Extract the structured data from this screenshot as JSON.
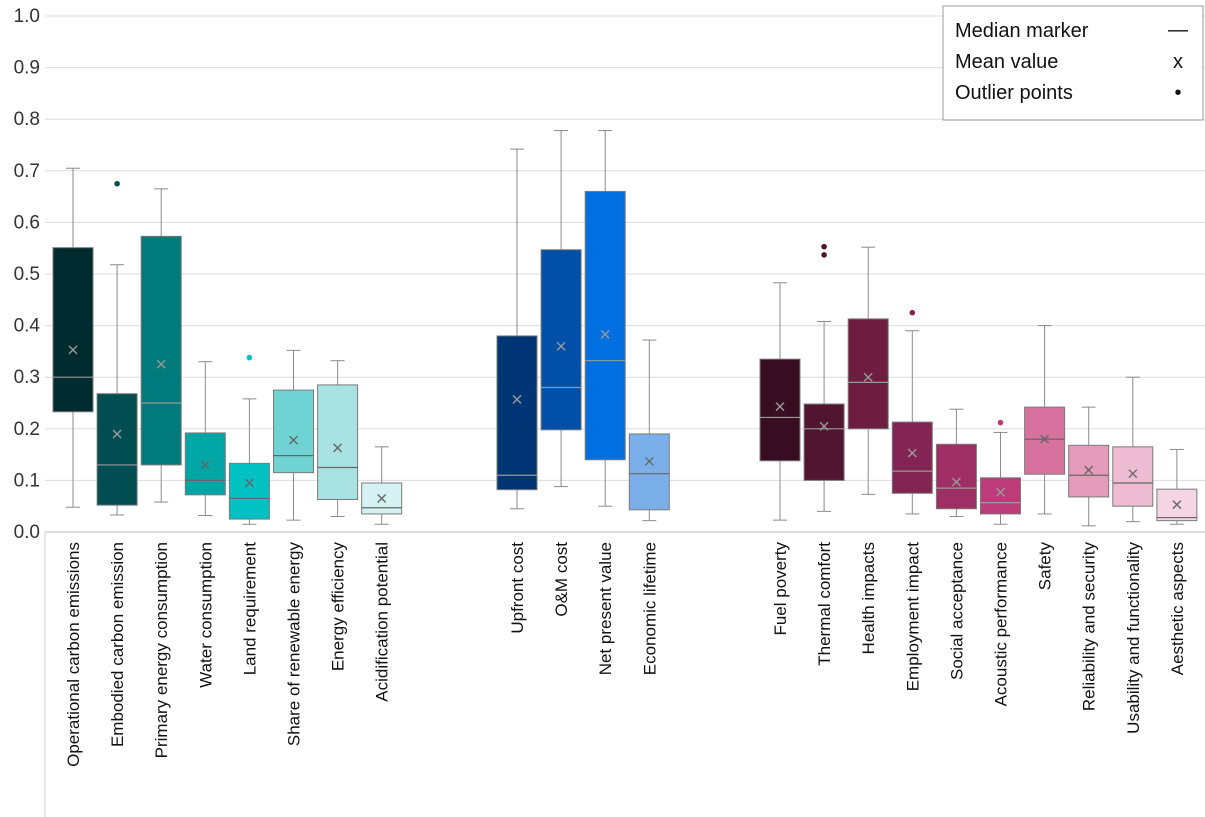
{
  "chart_data": {
    "type": "box",
    "ylim": [
      0,
      1.0
    ],
    "yticks": [
      "0.0",
      "0.1",
      "0.2",
      "0.3",
      "0.4",
      "0.5",
      "0.6",
      "0.7",
      "0.8",
      "0.9",
      "1.0"
    ],
    "grid": true,
    "legend_position": "top-right",
    "legend": [
      {
        "label": "Median marker",
        "symbol": "—"
      },
      {
        "label": "Mean value",
        "symbol": "x"
      },
      {
        "label": "Outlier points",
        "symbol": "•"
      }
    ],
    "groups": [
      {
        "categories": [
          {
            "label": "Operational carbon emissions",
            "color": "#002B2E",
            "min": 0.048,
            "q1": 0.233,
            "median": 0.3,
            "q3": 0.551,
            "max": 0.705,
            "mean": 0.353,
            "outliers": []
          },
          {
            "label": "Embodied carbon emission",
            "color": "#004E52",
            "min": 0.033,
            "q1": 0.052,
            "median": 0.13,
            "q3": 0.268,
            "max": 0.518,
            "mean": 0.19,
            "outliers": [
              0.675
            ]
          },
          {
            "label": "Primary energy consumption",
            "color": "#007A7A",
            "min": 0.058,
            "q1": 0.13,
            "median": 0.25,
            "q3": 0.573,
            "max": 0.665,
            "mean": 0.325,
            "outliers": []
          },
          {
            "label": "Water consumption",
            "color": "#00A5A5",
            "min": 0.032,
            "q1": 0.072,
            "median": 0.1,
            "q3": 0.192,
            "max": 0.33,
            "mean": 0.13,
            "outliers": []
          },
          {
            "label": "Land requirement",
            "color": "#00C2C2",
            "min": 0.015,
            "q1": 0.025,
            "median": 0.065,
            "q3": 0.133,
            "max": 0.258,
            "mean": 0.095,
            "outliers": [
              0.338
            ]
          },
          {
            "label": "Share of renewable energy",
            "color": "#6FD3D3",
            "min": 0.023,
            "q1": 0.115,
            "median": 0.148,
            "q3": 0.275,
            "max": 0.352,
            "mean": 0.178,
            "outliers": []
          },
          {
            "label": "Energy efficiency",
            "color": "#A8E2E2",
            "min": 0.03,
            "q1": 0.063,
            "median": 0.125,
            "q3": 0.285,
            "max": 0.332,
            "mean": 0.163,
            "outliers": []
          },
          {
            "label": "Acidification potential",
            "color": "#D4F2F2",
            "min": 0.015,
            "q1": 0.035,
            "median": 0.047,
            "q3": 0.095,
            "max": 0.165,
            "mean": 0.065,
            "outliers": []
          }
        ]
      },
      {
        "categories": [
          {
            "label": "Upfront cost",
            "color": "#003575",
            "min": 0.045,
            "q1": 0.082,
            "median": 0.11,
            "q3": 0.38,
            "max": 0.742,
            "mean": 0.257,
            "outliers": []
          },
          {
            "label": "O&M cost",
            "color": "#0050AA",
            "min": 0.088,
            "q1": 0.198,
            "median": 0.28,
            "q3": 0.547,
            "max": 0.778,
            "mean": 0.36,
            "outliers": []
          },
          {
            "label": "Net present value",
            "color": "#0070E0",
            "min": 0.05,
            "q1": 0.14,
            "median": 0.332,
            "q3": 0.66,
            "max": 0.778,
            "mean": 0.383,
            "outliers": []
          },
          {
            "label": "Economic lifetime",
            "color": "#7AAFEA",
            "min": 0.022,
            "q1": 0.043,
            "median": 0.113,
            "q3": 0.19,
            "max": 0.372,
            "mean": 0.137,
            "outliers": []
          }
        ]
      },
      {
        "categories": [
          {
            "label": "Fuel poverty",
            "color": "#3A0E22",
            "min": 0.023,
            "q1": 0.138,
            "median": 0.222,
            "q3": 0.335,
            "max": 0.483,
            "mean": 0.243,
            "outliers": []
          },
          {
            "label": "Thermal comfort",
            "color": "#521530",
            "min": 0.04,
            "q1": 0.1,
            "median": 0.2,
            "q3": 0.248,
            "max": 0.408,
            "mean": 0.205,
            "outliers": [
              0.537,
              0.553
            ]
          },
          {
            "label": "Health impacts",
            "color": "#6E1D40",
            "min": 0.073,
            "q1": 0.2,
            "median": 0.29,
            "q3": 0.413,
            "max": 0.552,
            "mean": 0.3,
            "outliers": []
          },
          {
            "label": "Employment impact",
            "color": "#832552",
            "min": 0.035,
            "q1": 0.075,
            "median": 0.118,
            "q3": 0.213,
            "max": 0.39,
            "mean": 0.153,
            "outliers": [
              0.425
            ]
          },
          {
            "label": "Social acceptance",
            "color": "#9E2E63",
            "min": 0.03,
            "q1": 0.045,
            "median": 0.085,
            "q3": 0.17,
            "max": 0.238,
            "mean": 0.097,
            "outliers": []
          },
          {
            "label": "Acoustic performance",
            "color": "#BC3C7A",
            "min": 0.015,
            "q1": 0.035,
            "median": 0.057,
            "q3": 0.105,
            "max": 0.193,
            "mean": 0.077,
            "outliers": [
              0.212
            ]
          },
          {
            "label": "Safety",
            "color": "#D7719E",
            "min": 0.035,
            "q1": 0.112,
            "median": 0.18,
            "q3": 0.242,
            "max": 0.4,
            "mean": 0.18,
            "outliers": []
          },
          {
            "label": "Reliability and security",
            "color": "#E59CBB",
            "min": 0.012,
            "q1": 0.068,
            "median": 0.11,
            "q3": 0.168,
            "max": 0.242,
            "mean": 0.12,
            "outliers": []
          },
          {
            "label": "Usability and functionality",
            "color": "#EEBCD2",
            "min": 0.02,
            "q1": 0.05,
            "median": 0.095,
            "q3": 0.165,
            "max": 0.3,
            "mean": 0.113,
            "outliers": []
          },
          {
            "label": "Aesthetic aspects",
            "color": "#F5D5E3",
            "min": 0.015,
            "q1": 0.022,
            "median": 0.028,
            "q3": 0.083,
            "max": 0.16,
            "mean": 0.053,
            "outliers": []
          }
        ]
      }
    ]
  }
}
